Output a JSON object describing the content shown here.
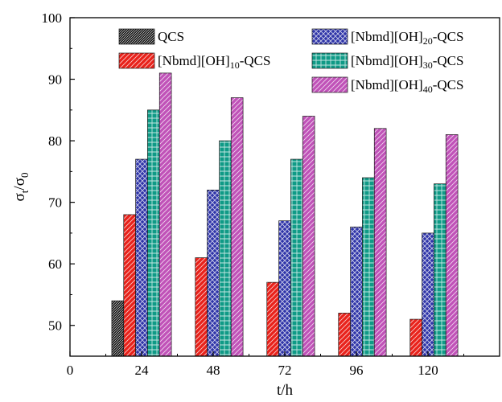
{
  "chart_data": {
    "type": "bar",
    "xlabel": "t/h",
    "ylabel": {
      "main": "σ",
      "sub1": "t",
      "mid": "/σ",
      "sub2": "0"
    },
    "ylim": [
      45,
      100
    ],
    "xlim": [
      0,
      144
    ],
    "yticks": [
      50,
      60,
      70,
      80,
      90,
      100
    ],
    "xticks": [
      0,
      24,
      48,
      72,
      96,
      120
    ],
    "legend_position": "top",
    "bar_width_hours": 4,
    "series": [
      {
        "name_parts": [
          "QCS"
        ],
        "color": "#000000",
        "pattern": "diag-dense",
        "x": [
          24
        ],
        "values": [
          54
        ]
      },
      {
        "name_parts": [
          "[Nbmd][OH]",
          "10",
          "-QCS"
        ],
        "color": "#e8221b",
        "pattern": "diag-sparse",
        "x": [
          24,
          48,
          72,
          96,
          120
        ],
        "values": [
          68,
          61,
          57,
          52,
          51
        ]
      },
      {
        "name_parts": [
          "[Nbmd][OH]",
          "20",
          "-QCS"
        ],
        "color": "#2e34a8",
        "pattern": "crosshatch",
        "x": [
          24,
          48,
          72,
          96,
          120
        ],
        "values": [
          77,
          72,
          67,
          66,
          65
        ]
      },
      {
        "name_parts": [
          "[Nbmd][OH]",
          "30",
          "-QCS"
        ],
        "color": "#0f9a86",
        "pattern": "grid",
        "x": [
          24,
          48,
          72,
          96,
          120
        ],
        "values": [
          85,
          80,
          77,
          74,
          73
        ]
      },
      {
        "name_parts": [
          "[Nbmd][OH]",
          "40",
          "-QCS"
        ],
        "color": "#c052b8",
        "pattern": "diag-sparse",
        "x": [
          24,
          48,
          72,
          96,
          120
        ],
        "values": [
          91,
          87,
          84,
          82,
          81
        ]
      }
    ],
    "series_offsets": [
      -2,
      -1,
      0,
      1,
      2
    ]
  }
}
